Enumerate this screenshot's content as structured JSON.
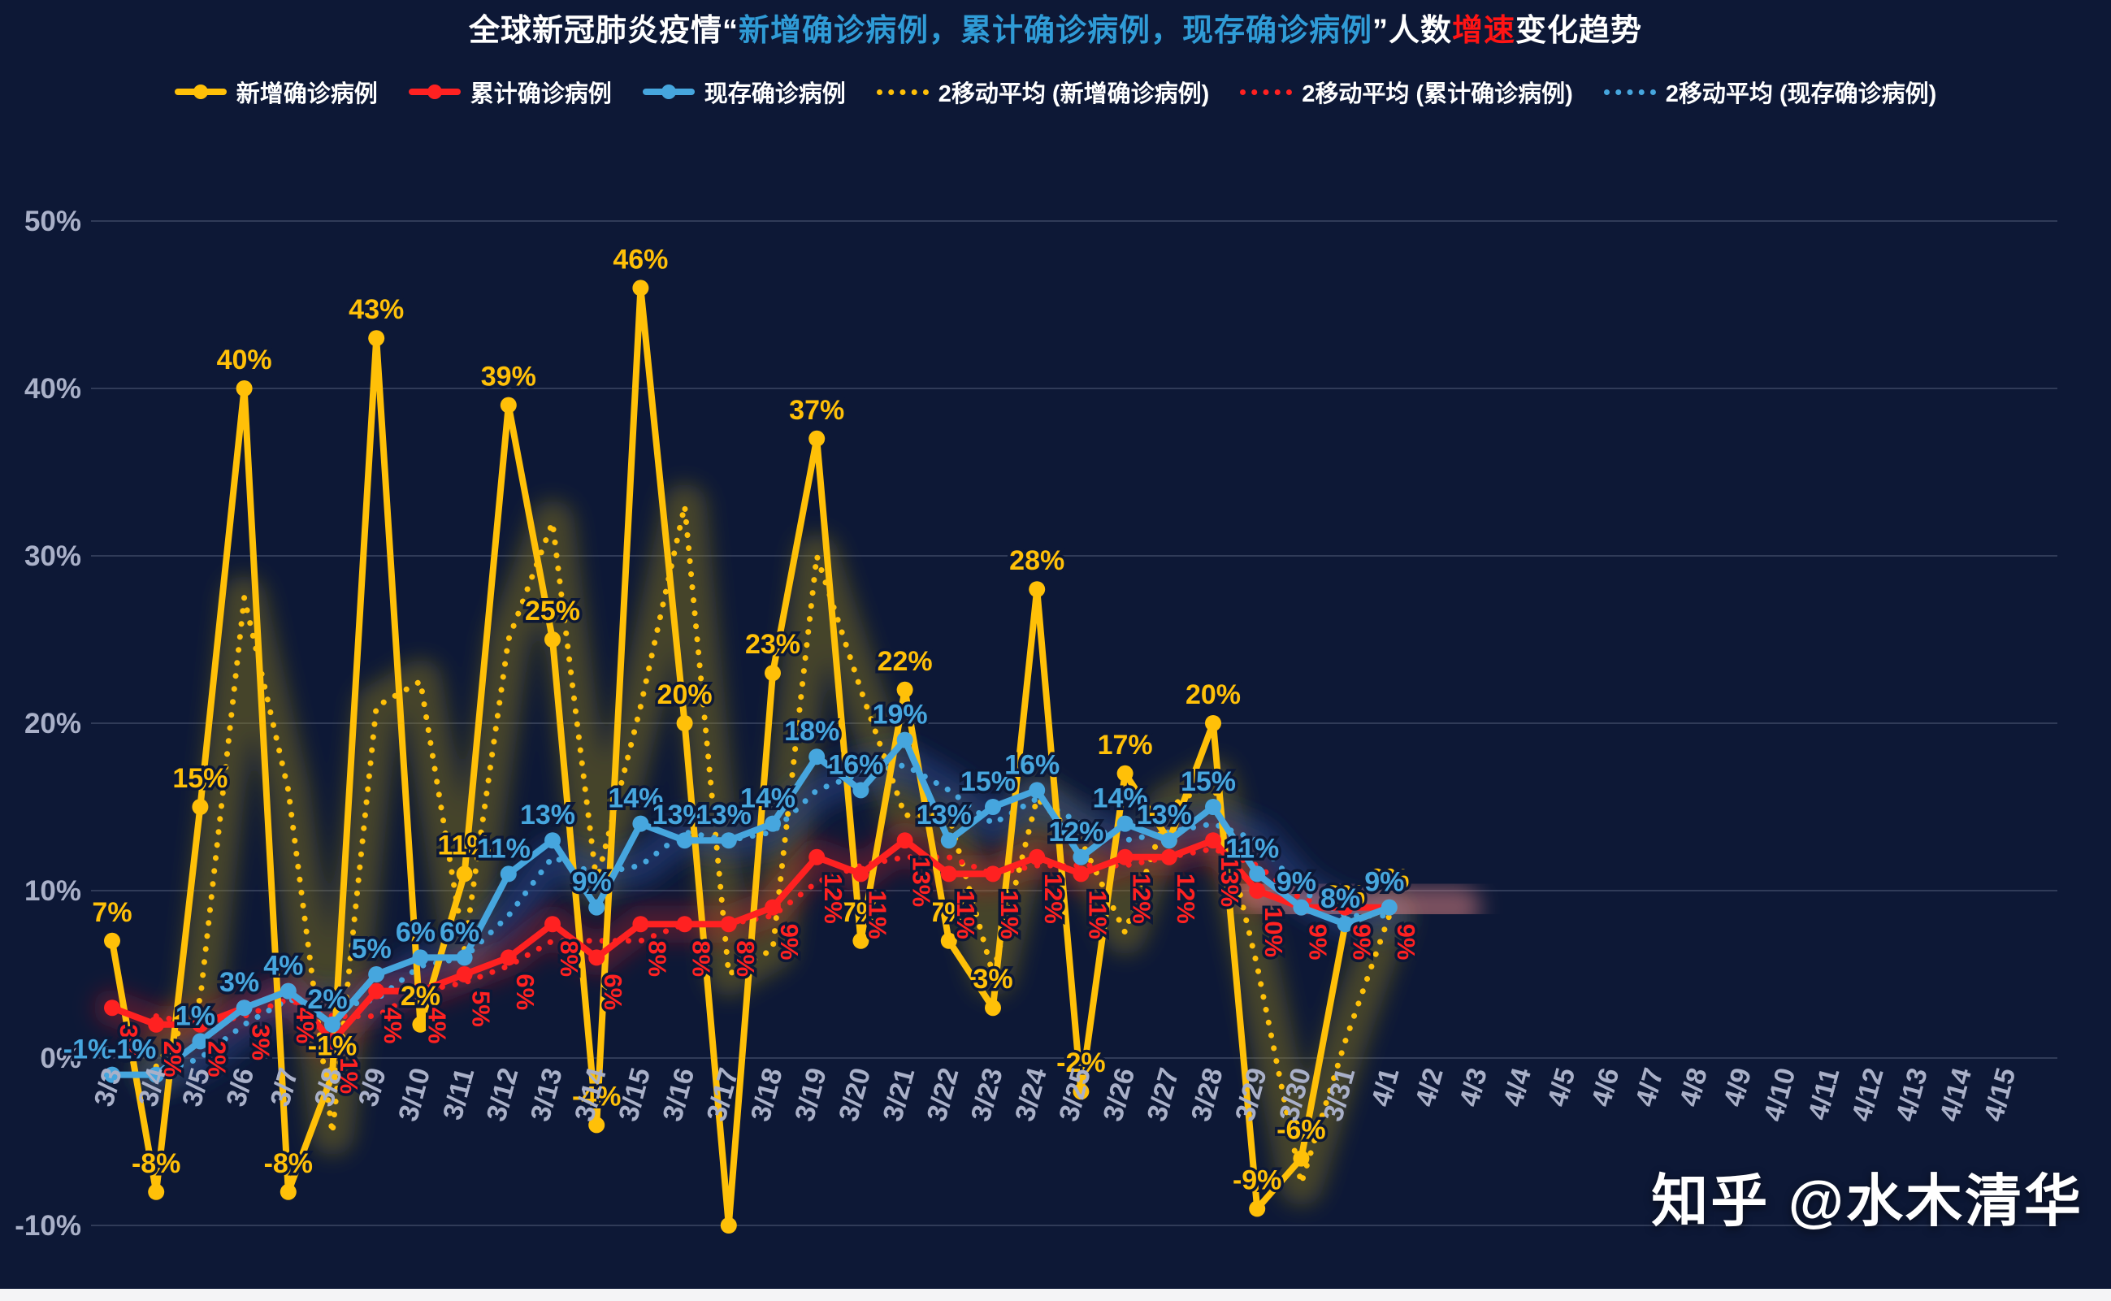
{
  "title": {
    "prefix": "全球新冠肺炎疫情“",
    "series_blue": "新增确诊病例，累计确诊病例，现存确诊病例",
    "mid": "”人数",
    "speed_red": "增速",
    "suffix": "变化趋势"
  },
  "watermark": "知乎 @水木清华",
  "colors": {
    "background": "#0d1836",
    "new_cases": "#ffc008",
    "cumulative_cases": "#ff2121",
    "existing_cases": "#46a6de",
    "axis_text": "#a9b0c8",
    "gridline": "rgba(190,200,225,0.20)",
    "title_blue": "#2f9bd6",
    "title_red": "#ff1414",
    "glow_olive": "#9c8414",
    "glow_navy": "#27407f",
    "glow_red": "#ff1a1a",
    "glow_rose": "#e98a8a"
  },
  "legend": [
    {
      "label": "新增确诊病例",
      "color": "#ffc008",
      "style": "solid"
    },
    {
      "label": "累计确诊病例",
      "color": "#ff2121",
      "style": "solid"
    },
    {
      "label": "现存确诊病例",
      "color": "#46a6de",
      "style": "solid"
    },
    {
      "label": "2移动平均 (新增确诊病例)",
      "color": "#ffc008",
      "style": "dotted"
    },
    {
      "label": "2移动平均 (累计确诊病例)",
      "color": "#ff2121",
      "style": "dotted"
    },
    {
      "label": "2移动平均 (现存确诊病例)",
      "color": "#46a6de",
      "style": "dotted"
    }
  ],
  "chart_data": {
    "type": "line",
    "title": "全球新冠肺炎疫情“新增确诊病例，累计确诊病例，现存确诊病例”人数增速变化趋势",
    "categories": [
      "3/3",
      "3/4",
      "3/5",
      "3/6",
      "3/7",
      "3/8",
      "3/9",
      "3/10",
      "3/11",
      "3/12",
      "3/13",
      "3/14",
      "3/15",
      "3/16",
      "3/17",
      "3/18",
      "3/19",
      "3/20",
      "3/21",
      "3/22",
      "3/23",
      "3/24",
      "3/25",
      "3/26",
      "3/27",
      "3/28",
      "3/29",
      "3/30",
      "3/31",
      "4/1",
      "4/2",
      "4/3",
      "4/4",
      "4/5",
      "4/6",
      "4/7",
      "4/8",
      "4/9",
      "4/10",
      "4/11",
      "4/12",
      "4/13",
      "4/14",
      "4/15"
    ],
    "ylim": [
      -10,
      50
    ],
    "ytick_labels": [
      "-10%",
      "0%",
      "10%",
      "20%",
      "30%",
      "40%",
      "50%"
    ],
    "grid": "horizontal",
    "legend_position": "top",
    "series": [
      {
        "name": "新增确诊病例",
        "color": "#ffc008",
        "style": "solid",
        "values": [
          7,
          -8,
          15,
          40,
          -8,
          -1,
          43,
          2,
          11,
          39,
          25,
          -4,
          46,
          20,
          -10,
          23,
          37,
          7,
          22,
          7,
          3,
          28,
          -2,
          17,
          13,
          20,
          -9,
          -6,
          8,
          9
        ],
        "hidden_label_indices": [
          14,
          24
        ],
        "label_unit": "%"
      },
      {
        "name": "累计确诊病例",
        "color": "#ff2121",
        "style": "solid",
        "values": [
          3,
          2,
          2,
          3,
          4,
          1,
          4,
          4,
          5,
          6,
          8,
          6,
          8,
          8,
          8,
          9,
          12,
          11,
          13,
          11,
          11,
          12,
          11,
          12,
          12,
          13,
          10,
          9,
          9,
          9
        ],
        "hidden_label_indices": [],
        "label_unit": "%",
        "label_rotated": true
      },
      {
        "name": "现存确诊病例",
        "color": "#46a6de",
        "style": "solid",
        "values": [
          -1,
          -1,
          1,
          3,
          4,
          2,
          5,
          6,
          6,
          11,
          13,
          9,
          14,
          13,
          13,
          14,
          18,
          16,
          19,
          13,
          15,
          16,
          12,
          14,
          13,
          15,
          11,
          9,
          8,
          9
        ],
        "hidden_label_indices": [],
        "label_unit": "%"
      },
      {
        "name": "2移动平均 (新增确诊病例)",
        "color": "#ffc008",
        "style": "dotted",
        "no_labels": true,
        "values": [
          null,
          -0.5,
          3.5,
          27.5,
          16,
          -4.5,
          21,
          22.5,
          6.5,
          25,
          32,
          10.5,
          21,
          33,
          5,
          6.5,
          30,
          22,
          14.5,
          14.5,
          5,
          15.5,
          13,
          7.5,
          15,
          16.5,
          5.5,
          -7.5,
          1,
          8.5
        ]
      },
      {
        "name": "2移动平均 (累计确诊病例)",
        "color": "#ff2121",
        "style": "dotted",
        "no_labels": true,
        "values": [
          null,
          2.5,
          2,
          2.5,
          3.5,
          2.5,
          2.5,
          4,
          4.5,
          5.5,
          7,
          7,
          7,
          8,
          8,
          8.5,
          10.5,
          11.5,
          12,
          12,
          11,
          11.5,
          11.5,
          11.5,
          12,
          12.5,
          11.5,
          9.5,
          9,
          9
        ]
      },
      {
        "name": "2移动平均 (现存确诊病例)",
        "color": "#46a6de",
        "style": "dotted",
        "no_labels": true,
        "values": [
          null,
          -1,
          0,
          2,
          3.5,
          3,
          3.5,
          5.5,
          6,
          8.5,
          12,
          11,
          11.5,
          13.5,
          13,
          13.5,
          16,
          17,
          17.5,
          16,
          14,
          15.5,
          14,
          13,
          13.5,
          14,
          13,
          10,
          8.5,
          8.5
        ]
      }
    ],
    "highlight_strokes": [
      {
        "follows": "2移动平均 (新增确诊病例)",
        "color": "#9c8414",
        "opacity": 0.4,
        "width": 54
      },
      {
        "follows": "2移动平均 (现存确诊病例)",
        "color": "#27407f",
        "opacity": 0.6,
        "width": 48
      },
      {
        "follows": "累计确诊病例",
        "color": "#ff1a1a",
        "opacity": 0.26,
        "width": 46,
        "from": 0,
        "to": 26
      },
      {
        "follows": "累计确诊病例",
        "color": "#e98a8a",
        "opacity": 0.5,
        "width": 52,
        "from": 26,
        "to": 29,
        "extend_right": 1.6
      }
    ]
  }
}
